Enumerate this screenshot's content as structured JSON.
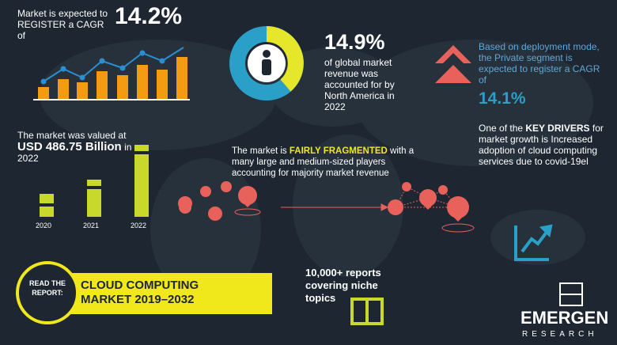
{
  "cagr_block": {
    "text": "Market is expected to REGISTER a CAGR of",
    "value": "14.2%"
  },
  "north_america": {
    "value": "14.9%",
    "text": "of global market revenue was accounted for by North America in 2022"
  },
  "deployment": {
    "text": "Based on deployment mode, the Private segment is expected to register a CAGR of",
    "value": "14.1%"
  },
  "drivers": {
    "lead": "One of the",
    "highlight": "KEY DRIVERS",
    "text": "for market growth is Increased adoption of cloud computing services due to covid-19el"
  },
  "valuation": {
    "lead": "The market was valued at",
    "value": "USD 486.75 Billion",
    "in": "in",
    "year": "2022",
    "years": [
      "2020",
      "2021",
      "2022"
    ]
  },
  "fragmentation": {
    "lead": "The market is",
    "highlight": "FAIRLY FRAGMENTED",
    "text": "with a many large and medium-sized players accounting for majority market revenue"
  },
  "reports": {
    "text": "10,000+ reports covering niche topics"
  },
  "cta": {
    "badge": "READ THE REPORT:",
    "title": "CLOUD COMPUTING MARKET 2019–2032"
  },
  "logo": {
    "name": "EMERGEN",
    "sub": "RESEARCH"
  }
}
